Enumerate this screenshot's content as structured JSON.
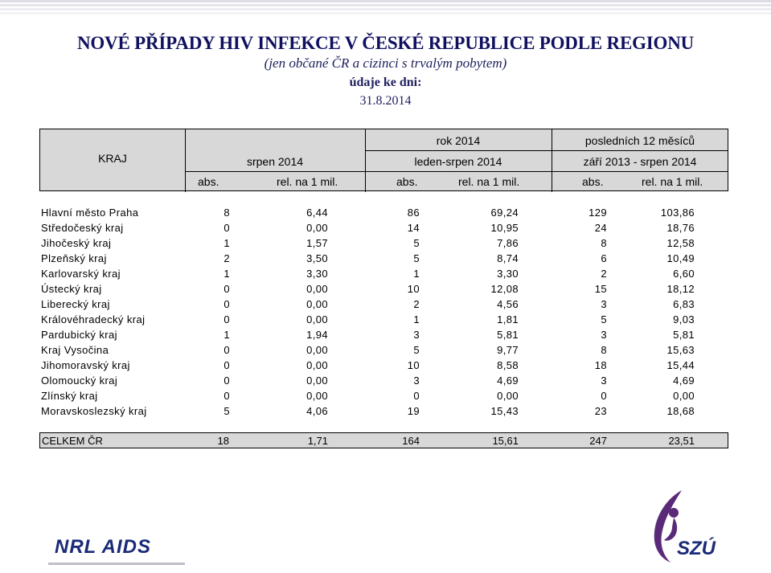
{
  "title": "NOVÉ PŘÍPADY HIV INFEKCE V ČESKÉ REPUBLICE PODLE REGIONU",
  "subtitle": "(jen občané ČR a cizinci s trvalým pobytem)",
  "date_label": "údaje ke dni:",
  "date_value": "31.8.2014",
  "header": {
    "kraj": "KRAJ",
    "rok": "rok 2014",
    "poslednich": "posledních 12 měsíců",
    "period1": "srpen 2014",
    "period2": "leden-srpen 2014",
    "period3": "září 2013 - srpen 2014",
    "abs": "abs.",
    "rel": "rel. na 1 mil."
  },
  "rows": [
    [
      "Hlavní město Praha",
      "8",
      "6,44",
      "86",
      "69,24",
      "129",
      "103,86"
    ],
    [
      "Středočeský kraj",
      "0",
      "0,00",
      "14",
      "10,95",
      "24",
      "18,76"
    ],
    [
      "Jihočeský kraj",
      "1",
      "1,57",
      "5",
      "7,86",
      "8",
      "12,58"
    ],
    [
      "Plzeňský kraj",
      "2",
      "3,50",
      "5",
      "8,74",
      "6",
      "10,49"
    ],
    [
      "Karlovarský kraj",
      "1",
      "3,30",
      "1",
      "3,30",
      "2",
      "6,60"
    ],
    [
      "Ústecký kraj",
      "0",
      "0,00",
      "10",
      "12,08",
      "15",
      "18,12"
    ],
    [
      "Liberecký kraj",
      "0",
      "0,00",
      "2",
      "4,56",
      "3",
      "6,83"
    ],
    [
      "Královéhradecký kraj",
      "0",
      "0,00",
      "1",
      "1,81",
      "5",
      "9,03"
    ],
    [
      "Pardubický kraj",
      "1",
      "1,94",
      "3",
      "5,81",
      "3",
      "5,81"
    ],
    [
      "Kraj Vysočina",
      "0",
      "0,00",
      "5",
      "9,77",
      "8",
      "15,63"
    ],
    [
      "Jihomoravský kraj",
      "0",
      "0,00",
      "10",
      "8,58",
      "18",
      "15,44"
    ],
    [
      "Olomoucký kraj",
      "0",
      "0,00",
      "3",
      "4,69",
      "3",
      "4,69"
    ],
    [
      "Zlínský kraj",
      "0",
      "0,00",
      "0",
      "0,00",
      "0",
      "0,00"
    ],
    [
      "Moravskoslezský kraj",
      "5",
      "4,06",
      "19",
      "15,43",
      "23",
      "18,68"
    ]
  ],
  "total": [
    "CELKEM ČR",
    "18",
    "1,71",
    "164",
    "15,61",
    "247",
    "23,51"
  ],
  "logos": {
    "nrl": "NRL AIDS",
    "szu": "SZÚ"
  },
  "colors": {
    "title": "#101060",
    "header_bg": "#d8d8d8",
    "logo_blue": "#1a2a78",
    "logo_purple": "#5a2a78"
  }
}
